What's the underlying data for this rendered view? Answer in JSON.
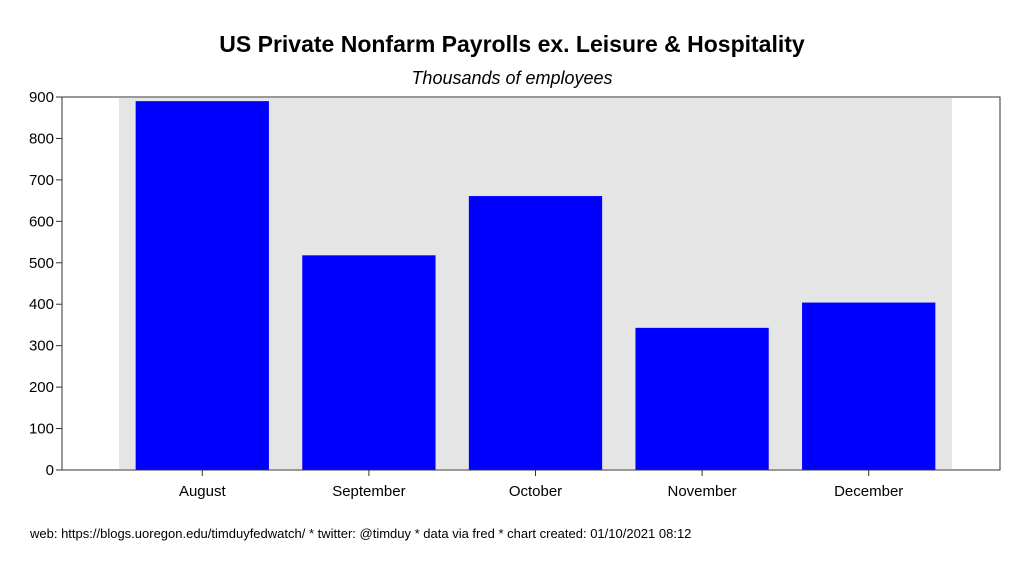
{
  "chart_data": {
    "type": "bar",
    "title": "US Private Nonfarm Payrolls ex. Leisure & Hospitality",
    "subtitle": "Thousands of employees",
    "xlabel": "",
    "ylabel": "",
    "categories": [
      "August",
      "September",
      "October",
      "November",
      "December"
    ],
    "series": [
      {
        "values": [
          890,
          518,
          661,
          343,
          404
        ],
        "color": "#0000ff"
      }
    ],
    "ylim": [
      0,
      900
    ],
    "yticks": [
      0,
      100,
      200,
      300,
      400,
      500,
      600,
      700,
      800,
      900
    ],
    "background_color": "#e5e5e5",
    "grid": false,
    "legend": "none"
  },
  "footer": "web: https://blogs.uoregon.edu/timduyfedwatch/ * twitter: @timduy * data via fred * chart created: 01/10/2021 08:12"
}
